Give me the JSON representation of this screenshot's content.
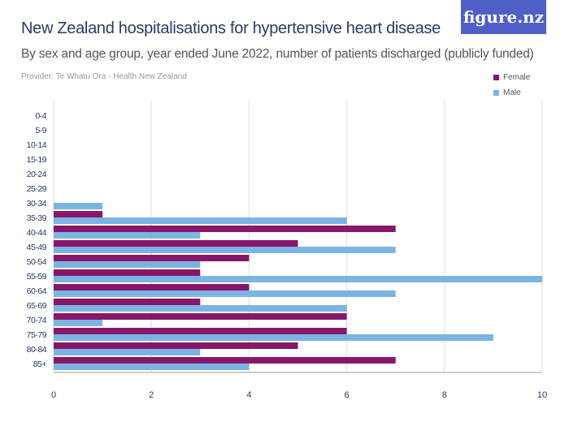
{
  "title": "New Zealand hospitalisations for hypertensive heart disease",
  "subtitle": "By sex and age group, year ended June 2022, number of patients discharged (publicly funded)",
  "provider": "Provider: Te Whatu Ora - Health New Zealand",
  "logo": "figure.nz",
  "chart_data": {
    "type": "bar",
    "orientation": "horizontal",
    "categories": [
      "0-4",
      "5-9",
      "10-14",
      "15-19",
      "20-24",
      "25-29",
      "30-34",
      "35-39",
      "40-44",
      "45-49",
      "50-54",
      "55-59",
      "60-64",
      "65-69",
      "70-74",
      "75-79",
      "80-84",
      "85+"
    ],
    "series": [
      {
        "name": "Female",
        "color": "#86176b",
        "values": [
          0,
          0,
          0,
          0,
          0,
          0,
          0,
          1,
          7,
          5,
          4,
          3,
          4,
          3,
          6,
          6,
          5,
          7
        ]
      },
      {
        "name": "Male",
        "color": "#7bb4e3",
        "values": [
          0,
          0,
          0,
          0,
          0,
          0,
          1,
          6,
          3,
          7,
          3,
          10,
          7,
          6,
          1,
          9,
          3,
          4
        ]
      }
    ],
    "xlim": [
      0,
      10
    ],
    "xticks": [
      0,
      2,
      4,
      6,
      8,
      10
    ],
    "grid": true,
    "legend": "top-right"
  }
}
